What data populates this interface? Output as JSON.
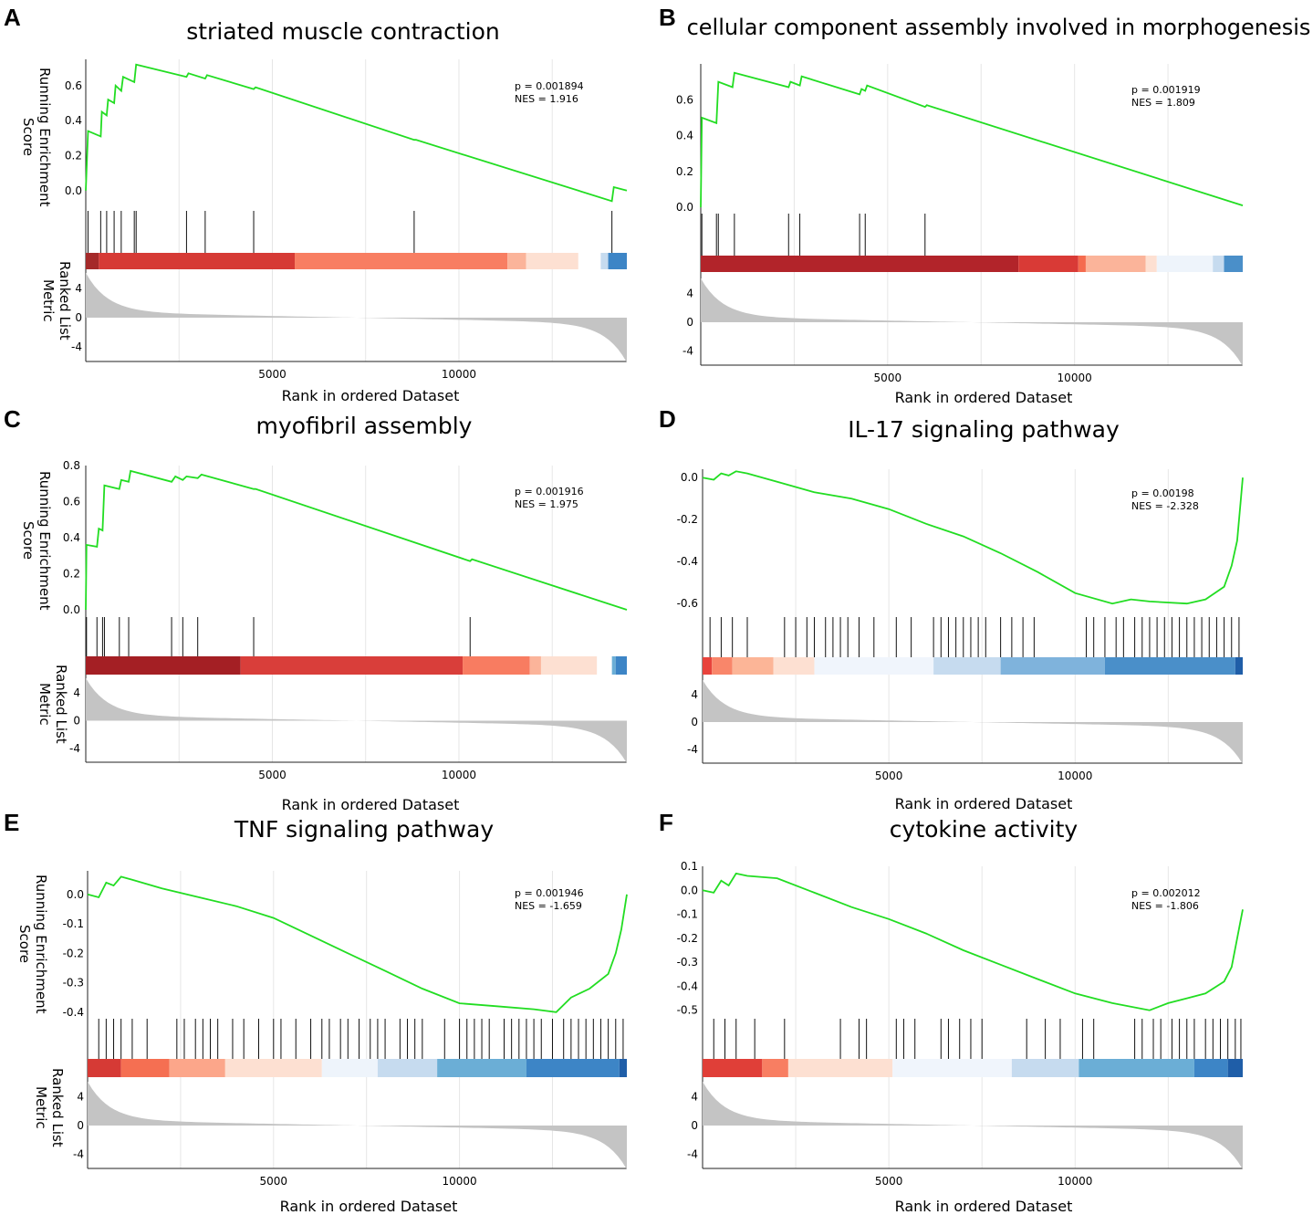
{
  "chart_data": [
    {
      "panel": "A",
      "type": "line",
      "title": "striated muscle contraction",
      "ylabel_es": "Running Enrichment\nScore",
      "ylabel_rank": "Ranked List Metric",
      "xlabel": "Rank in ordered Dataset",
      "p_text": "p = 0.001894",
      "nes_text": "NES = 1.916",
      "xlim": [
        0,
        14500
      ],
      "xticks": [
        "5000",
        "10000"
      ],
      "ylim": [
        -0.1,
        0.75
      ],
      "yticks": [
        "0.0",
        "0.2",
        "0.4",
        "0.6"
      ],
      "rank_yticks": [
        "4",
        "0",
        "-4"
      ],
      "curve": [
        [
          0,
          0.0
        ],
        [
          60,
          0.34
        ],
        [
          400,
          0.31
        ],
        [
          430,
          0.45
        ],
        [
          560,
          0.43
        ],
        [
          600,
          0.52
        ],
        [
          760,
          0.5
        ],
        [
          800,
          0.6
        ],
        [
          950,
          0.57
        ],
        [
          1000,
          0.65
        ],
        [
          1300,
          0.62
        ],
        [
          1350,
          0.72
        ],
        [
          2700,
          0.65
        ],
        [
          2750,
          0.67
        ],
        [
          3200,
          0.64
        ],
        [
          3250,
          0.66
        ],
        [
          4500,
          0.58
        ],
        [
          4550,
          0.59
        ],
        [
          8800,
          0.29
        ],
        [
          8850,
          0.29
        ],
        [
          14100,
          -0.06
        ],
        [
          14150,
          0.02
        ],
        [
          14500,
          0.0
        ]
      ],
      "hits": [
        60,
        400,
        560,
        760,
        950,
        1300,
        1350,
        2700,
        3200,
        4500,
        8800,
        14100
      ],
      "heat": [
        [
          "#a52a2a",
          0,
          350
        ],
        [
          "#d63a35",
          350,
          5600
        ],
        [
          "#f87e62",
          5600,
          11300
        ],
        [
          "#fbb49a",
          11300,
          11800
        ],
        [
          "#fde0d2",
          11800,
          13200
        ],
        [
          "#ffffff",
          13200,
          13800
        ],
        [
          "#c6dbef",
          13800,
          14000
        ],
        [
          "#3d85c6",
          14000,
          14500
        ]
      ]
    },
    {
      "panel": "B",
      "type": "line",
      "title": "cellular component assembly involved in morphogenesis",
      "ylabel_es": "",
      "ylabel_rank": "",
      "xlabel": "Rank in ordered Dataset",
      "p_text": "p = 0.001919",
      "nes_text": "NES = 1.809",
      "xlim": [
        0,
        14500
      ],
      "xticks": [
        "5000",
        "10000"
      ],
      "ylim": [
        -0.03,
        0.8
      ],
      "yticks": [
        "0.0",
        "0.2",
        "0.4",
        "0.6"
      ],
      "rank_yticks": [
        "4",
        "0",
        "-4"
      ],
      "curve": [
        [
          0,
          0.0
        ],
        [
          30,
          0.5
        ],
        [
          420,
          0.47
        ],
        [
          470,
          0.7
        ],
        [
          850,
          0.67
        ],
        [
          900,
          0.75
        ],
        [
          2350,
          0.67
        ],
        [
          2400,
          0.7
        ],
        [
          2650,
          0.68
        ],
        [
          2700,
          0.73
        ],
        [
          4250,
          0.63
        ],
        [
          4300,
          0.66
        ],
        [
          4400,
          0.65
        ],
        [
          4450,
          0.68
        ],
        [
          6000,
          0.56
        ],
        [
          6050,
          0.57
        ],
        [
          14500,
          0.01
        ]
      ],
      "hits": [
        30,
        420,
        470,
        900,
        2350,
        2650,
        4250,
        4400,
        6000
      ],
      "heat": [
        [
          "#b2242a",
          0,
          8500
        ],
        [
          "#d93a36",
          8500,
          10100
        ],
        [
          "#f56b4e",
          10100,
          10300
        ],
        [
          "#fbb49a",
          10300,
          11900
        ],
        [
          "#fde0d2",
          11900,
          12200
        ],
        [
          "#eef4fb",
          12200,
          13700
        ],
        [
          "#c6dbef",
          13700,
          14000
        ],
        [
          "#4a8fc9",
          14000,
          14500
        ]
      ]
    },
    {
      "panel": "C",
      "type": "line",
      "title": "myofibril assembly",
      "ylabel_es": "Running Enrichment\nScore",
      "ylabel_rank": "Ranked List Metric",
      "xlabel": "Rank in ordered Dataset",
      "p_text": "p = 0.001916",
      "nes_text": "NES = 1.975",
      "xlim": [
        0,
        14500
      ],
      "xticks": [
        "5000",
        "10000"
      ],
      "ylim": [
        0,
        0.8
      ],
      "yticks": [
        "0.0",
        "0.2",
        "0.4",
        "0.6",
        "0.8"
      ],
      "rank_yticks": [
        "4",
        "0",
        "-4"
      ],
      "curve": [
        [
          0,
          0.0
        ],
        [
          20,
          0.36
        ],
        [
          300,
          0.35
        ],
        [
          350,
          0.45
        ],
        [
          450,
          0.44
        ],
        [
          500,
          0.69
        ],
        [
          900,
          0.67
        ],
        [
          950,
          0.72
        ],
        [
          1150,
          0.71
        ],
        [
          1200,
          0.77
        ],
        [
          2300,
          0.71
        ],
        [
          2400,
          0.74
        ],
        [
          2600,
          0.72
        ],
        [
          2700,
          0.74
        ],
        [
          3000,
          0.73
        ],
        [
          3100,
          0.75
        ],
        [
          4500,
          0.67
        ],
        [
          4550,
          0.67
        ],
        [
          10300,
          0.27
        ],
        [
          10350,
          0.28
        ],
        [
          14500,
          0.0
        ]
      ],
      "hits": [
        20,
        300,
        450,
        500,
        900,
        1150,
        2300,
        2600,
        3000,
        4500,
        10300
      ],
      "heat": [
        [
          "#a41f24",
          0,
          4150
        ],
        [
          "#d93e3a",
          4150,
          10100
        ],
        [
          "#f87c61",
          10100,
          11900
        ],
        [
          "#fbb49a",
          11900,
          12200
        ],
        [
          "#fde0d2",
          12200,
          13700
        ],
        [
          "#ffffff",
          13700,
          14100
        ],
        [
          "#6baed6",
          14100,
          14200
        ],
        [
          "#3d85c6",
          14200,
          14500
        ]
      ]
    },
    {
      "panel": "D",
      "type": "line",
      "title": "IL-17 signaling pathway",
      "ylabel_es": "",
      "ylabel_rank": "",
      "xlabel": "Rank in ordered Dataset",
      "p_text": "p = 0.00198",
      "nes_text": "NES = -2.328",
      "xlim": [
        0,
        14500
      ],
      "xticks": [
        "5000",
        "10000"
      ],
      "ylim": [
        -0.66,
        0.04
      ],
      "yticks": [
        "0.0",
        "-0.2",
        "-0.4",
        "-0.6"
      ],
      "rank_yticks": [
        "4",
        "0",
        "-4"
      ],
      "curve": [
        [
          0,
          0.0
        ],
        [
          300,
          -0.01
        ],
        [
          500,
          0.02
        ],
        [
          700,
          0.01
        ],
        [
          900,
          0.03
        ],
        [
          1200,
          0.02
        ],
        [
          2000,
          -0.02
        ],
        [
          3000,
          -0.07
        ],
        [
          4000,
          -0.1
        ],
        [
          5000,
          -0.15
        ],
        [
          6000,
          -0.22
        ],
        [
          7000,
          -0.28
        ],
        [
          8000,
          -0.36
        ],
        [
          9000,
          -0.45
        ],
        [
          10000,
          -0.55
        ],
        [
          11000,
          -0.6
        ],
        [
          11500,
          -0.58
        ],
        [
          12000,
          -0.59
        ],
        [
          13000,
          -0.6
        ],
        [
          13500,
          -0.58
        ],
        [
          14000,
          -0.52
        ],
        [
          14200,
          -0.42
        ],
        [
          14350,
          -0.3
        ],
        [
          14450,
          -0.1
        ],
        [
          14500,
          0.0
        ]
      ],
      "hits": [
        200,
        500,
        800,
        1200,
        2200,
        2500,
        2800,
        3000,
        3300,
        3500,
        3700,
        3900,
        4200,
        4600,
        5200,
        5600,
        6200,
        6400,
        6600,
        6800,
        7000,
        7200,
        7400,
        7600,
        8000,
        8300,
        8600,
        8900,
        10300,
        10500,
        10800,
        11100,
        11300,
        11600,
        11800,
        12000,
        12200,
        12400,
        12600,
        12800,
        13000,
        13200,
        13400,
        13600,
        13800,
        14000,
        14200,
        14400
      ],
      "heat": [
        [
          "#e8433c",
          0,
          250
        ],
        [
          "#f9866a",
          250,
          800
        ],
        [
          "#fcb597",
          800,
          1900
        ],
        [
          "#fde0d2",
          1900,
          3000
        ],
        [
          "#f0f5fc",
          3000,
          6200
        ],
        [
          "#c6dbef",
          6200,
          8000
        ],
        [
          "#7fb3dc",
          8000,
          10800
        ],
        [
          "#4a8fc9",
          10800,
          14300
        ],
        [
          "#1f5ea8",
          14300,
          14500
        ]
      ]
    },
    {
      "panel": "E",
      "type": "line",
      "title": "TNF signaling pathway",
      "ylabel_es": "Running Enrichment\nScore",
      "ylabel_rank": "Ranked List Metric",
      "xlabel": "Rank in ordered Dataset",
      "p_text": "p = 0.001946",
      "nes_text": "NES = -1.659",
      "xlim": [
        0,
        14500
      ],
      "xticks": [
        "5000",
        "10000"
      ],
      "ylim": [
        -0.41,
        0.08
      ],
      "yticks": [
        "0.0",
        "-0.1",
        "-0.2",
        "-0.3",
        "-0.4"
      ],
      "rank_yticks": [
        "4",
        "0",
        "-4"
      ],
      "curve": [
        [
          0,
          0.0
        ],
        [
          300,
          -0.01
        ],
        [
          500,
          0.04
        ],
        [
          700,
          0.03
        ],
        [
          900,
          0.06
        ],
        [
          1200,
          0.05
        ],
        [
          2000,
          0.02
        ],
        [
          3000,
          -0.01
        ],
        [
          4000,
          -0.04
        ],
        [
          5000,
          -0.08
        ],
        [
          6000,
          -0.14
        ],
        [
          7000,
          -0.2
        ],
        [
          8000,
          -0.26
        ],
        [
          9000,
          -0.32
        ],
        [
          10000,
          -0.37
        ],
        [
          11000,
          -0.38
        ],
        [
          12000,
          -0.39
        ],
        [
          12600,
          -0.4
        ],
        [
          13000,
          -0.35
        ],
        [
          13500,
          -0.32
        ],
        [
          14000,
          -0.27
        ],
        [
          14200,
          -0.2
        ],
        [
          14350,
          -0.12
        ],
        [
          14500,
          0.0
        ]
      ],
      "hits": [
        300,
        500,
        700,
        900,
        1200,
        1600,
        2400,
        2600,
        2900,
        3100,
        3300,
        3500,
        3900,
        4200,
        4600,
        5000,
        5200,
        5600,
        6000,
        6300,
        6500,
        6800,
        7000,
        7300,
        7600,
        7800,
        8000,
        8400,
        8600,
        8800,
        9000,
        9600,
        10000,
        10200,
        10400,
        10600,
        10800,
        11200,
        11400,
        11600,
        11800,
        12000,
        12200,
        12500,
        12800,
        13000,
        13200,
        13400,
        13600,
        13800,
        14000,
        14200,
        14400
      ],
      "heat": [
        [
          "#d63a35",
          0,
          900
        ],
        [
          "#f56f52",
          900,
          2200
        ],
        [
          "#fca68a",
          2200,
          3700
        ],
        [
          "#fde0d2",
          3700,
          6300
        ],
        [
          "#eef4fb",
          6300,
          7800
        ],
        [
          "#c6dbef",
          7800,
          9400
        ],
        [
          "#6baed6",
          9400,
          11800
        ],
        [
          "#3d85c6",
          11800,
          14300
        ],
        [
          "#1f5ea8",
          14300,
          14500
        ]
      ]
    },
    {
      "panel": "F",
      "type": "line",
      "title": "cytokine activity",
      "ylabel_es": "",
      "ylabel_rank": "",
      "xlabel": "Rank in ordered Dataset",
      "p_text": "p = 0.002012",
      "nes_text": "NES = -1.806",
      "xlim": [
        0,
        14500
      ],
      "xticks": [
        "5000",
        "10000"
      ],
      "ylim": [
        -0.52,
        0.1
      ],
      "yticks": [
        "0.1",
        "0.0",
        "-0.1",
        "-0.2",
        "-0.3",
        "-0.4",
        "-0.5"
      ],
      "rank_yticks": [
        "4",
        "0",
        "-4"
      ],
      "curve": [
        [
          0,
          0.0
        ],
        [
          300,
          -0.01
        ],
        [
          500,
          0.04
        ],
        [
          700,
          0.02
        ],
        [
          900,
          0.07
        ],
        [
          1200,
          0.06
        ],
        [
          2000,
          0.05
        ],
        [
          3000,
          -0.01
        ],
        [
          4000,
          -0.07
        ],
        [
          5000,
          -0.12
        ],
        [
          6000,
          -0.18
        ],
        [
          7000,
          -0.25
        ],
        [
          8000,
          -0.31
        ],
        [
          9000,
          -0.37
        ],
        [
          10000,
          -0.43
        ],
        [
          11000,
          -0.47
        ],
        [
          12000,
          -0.5
        ],
        [
          12500,
          -0.47
        ],
        [
          13000,
          -0.45
        ],
        [
          13500,
          -0.43
        ],
        [
          14000,
          -0.38
        ],
        [
          14200,
          -0.32
        ],
        [
          14350,
          -0.2
        ],
        [
          14500,
          -0.08
        ]
      ],
      "hits": [
        300,
        600,
        900,
        1400,
        2200,
        3700,
        4200,
        4400,
        5200,
        5400,
        5700,
        6400,
        6600,
        6900,
        7200,
        7500,
        8700,
        9200,
        9600,
        10200,
        10500,
        11600,
        11800,
        12100,
        12300,
        12600,
        12800,
        13000,
        13200,
        13500,
        13700,
        13900,
        14100,
        14300,
        14450
      ],
      "heat": [
        [
          "#e03f38",
          0,
          1600
        ],
        [
          "#f87e62",
          1600,
          2300
        ],
        [
          "#fde0d2",
          2300,
          5100
        ],
        [
          "#f0f5fc",
          5100,
          8300
        ],
        [
          "#c6dbef",
          8300,
          10100
        ],
        [
          "#6baed6",
          10100,
          13200
        ],
        [
          "#3d85c6",
          13200,
          14100
        ],
        [
          "#1f5ea8",
          14100,
          14500
        ]
      ]
    }
  ]
}
